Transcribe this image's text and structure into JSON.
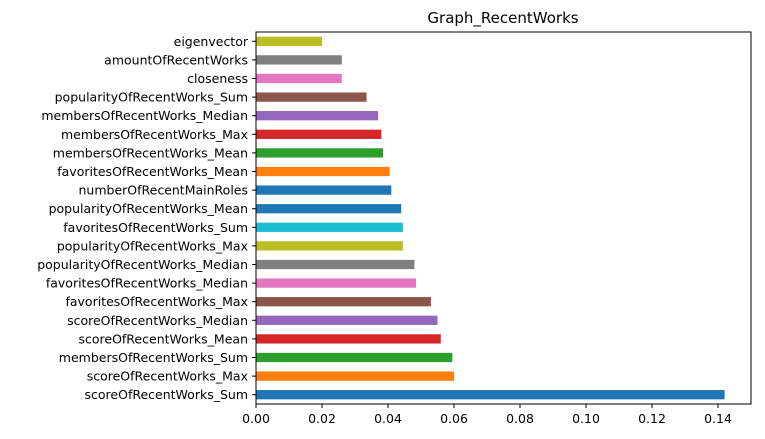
{
  "chart_data": {
    "type": "bar",
    "orientation": "horizontal",
    "title": "Graph_RecentWorks",
    "xlabel": "",
    "ylabel": "",
    "xlim": [
      0,
      0.15
    ],
    "x_ticks": [
      "0.00",
      "0.02",
      "0.04",
      "0.06",
      "0.08",
      "0.10",
      "0.12",
      "0.14"
    ],
    "grid": false,
    "legend": "none",
    "categories": [
      "scoreOfRecentWorks_Sum",
      "scoreOfRecentWorks_Max",
      "membersOfRecentWorks_Sum",
      "scoreOfRecentWorks_Mean",
      "scoreOfRecentWorks_Median",
      "favoritesOfRecentWorks_Max",
      "favoritesOfRecentWorks_Median",
      "popularityOfRecentWorks_Median",
      "popularityOfRecentWorks_Max",
      "favoritesOfRecentWorks_Sum",
      "popularityOfRecentWorks_Mean",
      "numberOfRecentMainRoles",
      "favoritesOfRecentWorks_Mean",
      "membersOfRecentWorks_Mean",
      "membersOfRecentWorks_Max",
      "membersOfRecentWorks_Median",
      "popularityOfRecentWorks_Sum",
      "closeness",
      "amountOfRecentWorks",
      "eigenvector"
    ],
    "values": [
      0.142,
      0.06,
      0.0595,
      0.056,
      0.055,
      0.053,
      0.0485,
      0.048,
      0.0445,
      0.0445,
      0.044,
      0.041,
      0.0405,
      0.0385,
      0.038,
      0.037,
      0.0335,
      0.026,
      0.026,
      0.02
    ],
    "colors": [
      "#1f77b4",
      "#ff7f0e",
      "#2ca02c",
      "#d62728",
      "#9467bd",
      "#8c564b",
      "#e377c2",
      "#7f7f7f",
      "#bcbd22",
      "#17becf",
      "#1f77b4",
      "#1f77b4",
      "#ff7f0e",
      "#2ca02c",
      "#d62728",
      "#9467bd",
      "#8c564b",
      "#e377c2",
      "#7f7f7f",
      "#bcbd22"
    ]
  }
}
